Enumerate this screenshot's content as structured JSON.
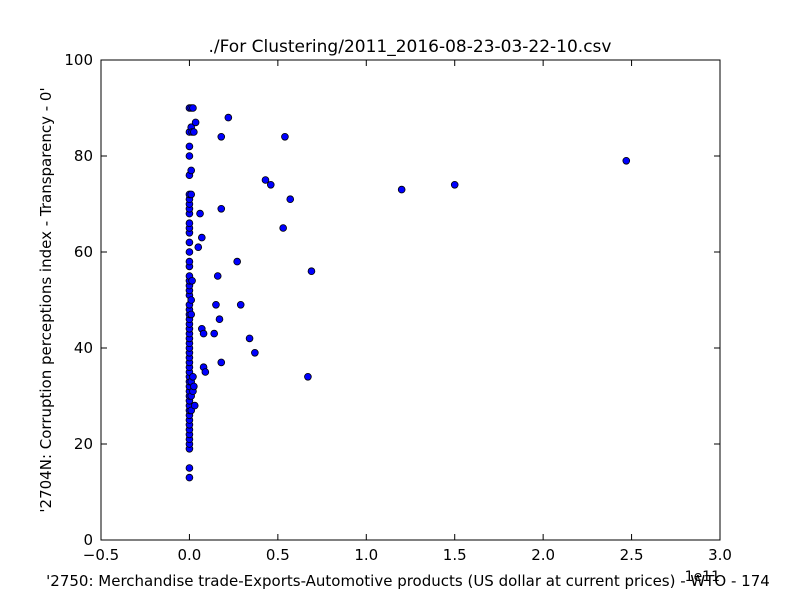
{
  "chart_data": {
    "type": "scatter",
    "title": "./For Clustering/2011_2016-08-23-03-22-10.csv",
    "xlabel": "'2750: Merchandise trade-Exports-Automotive products (US dollar at current prices) - WTO - 174",
    "ylabel": "'2704N: Corruption perceptions index - Transparency - 0'",
    "x_offset_text": "1e11",
    "xlim": [
      -0.5,
      3.0
    ],
    "ylim": [
      0,
      100
    ],
    "xticks": [
      -0.5,
      0.0,
      0.5,
      1.0,
      1.5,
      2.0,
      2.5,
      3.0
    ],
    "xtick_labels": [
      "−0.5",
      "0.0",
      "0.5",
      "1.0",
      "1.5",
      "2.0",
      "2.5",
      "3.0"
    ],
    "yticks": [
      0,
      20,
      40,
      60,
      80,
      100
    ],
    "ytick_labels": [
      "0",
      "20",
      "40",
      "60",
      "80",
      "100"
    ],
    "grid": false,
    "marker_color": "#0000ff",
    "marker_edge": "#000000",
    "points": [
      {
        "x": 0.0,
        "y": 13
      },
      {
        "x": 0.0,
        "y": 15
      },
      {
        "x": 0.0,
        "y": 19
      },
      {
        "x": 0.0,
        "y": 20
      },
      {
        "x": 0.0,
        "y": 21
      },
      {
        "x": 0.0,
        "y": 22
      },
      {
        "x": 0.0,
        "y": 23
      },
      {
        "x": 0.0,
        "y": 24
      },
      {
        "x": 0.0,
        "y": 25
      },
      {
        "x": 0.0,
        "y": 26
      },
      {
        "x": 0.0,
        "y": 27
      },
      {
        "x": 0.0,
        "y": 28
      },
      {
        "x": 0.0,
        "y": 29
      },
      {
        "x": 0.0,
        "y": 30
      },
      {
        "x": 0.0,
        "y": 31
      },
      {
        "x": 0.0,
        "y": 32
      },
      {
        "x": 0.0,
        "y": 33
      },
      {
        "x": 0.0,
        "y": 34
      },
      {
        "x": 0.0,
        "y": 35
      },
      {
        "x": 0.0,
        "y": 36
      },
      {
        "x": 0.0,
        "y": 37
      },
      {
        "x": 0.0,
        "y": 38
      },
      {
        "x": 0.0,
        "y": 39
      },
      {
        "x": 0.0,
        "y": 40
      },
      {
        "x": 0.0,
        "y": 41
      },
      {
        "x": 0.0,
        "y": 42
      },
      {
        "x": 0.0,
        "y": 43
      },
      {
        "x": 0.0,
        "y": 44
      },
      {
        "x": 0.0,
        "y": 45
      },
      {
        "x": 0.0,
        "y": 46
      },
      {
        "x": 0.0,
        "y": 47
      },
      {
        "x": 0.0,
        "y": 48
      },
      {
        "x": 0.0,
        "y": 49
      },
      {
        "x": 0.0,
        "y": 51
      },
      {
        "x": 0.0,
        "y": 52
      },
      {
        "x": 0.0,
        "y": 53
      },
      {
        "x": 0.0,
        "y": 54
      },
      {
        "x": 0.0,
        "y": 55
      },
      {
        "x": 0.0,
        "y": 57
      },
      {
        "x": 0.0,
        "y": 58
      },
      {
        "x": 0.0,
        "y": 60
      },
      {
        "x": 0.0,
        "y": 62
      },
      {
        "x": 0.0,
        "y": 64
      },
      {
        "x": 0.0,
        "y": 65
      },
      {
        "x": 0.0,
        "y": 66
      },
      {
        "x": 0.0,
        "y": 68
      },
      {
        "x": 0.0,
        "y": 69
      },
      {
        "x": 0.0,
        "y": 70
      },
      {
        "x": 0.0,
        "y": 71
      },
      {
        "x": 0.0,
        "y": 72
      },
      {
        "x": 0.0,
        "y": 76
      },
      {
        "x": 0.0,
        "y": 80
      },
      {
        "x": 0.0,
        "y": 82
      },
      {
        "x": 0.0,
        "y": 85
      },
      {
        "x": 0.0,
        "y": 90
      },
      {
        "x": 0.01,
        "y": 27
      },
      {
        "x": 0.01,
        "y": 30
      },
      {
        "x": 0.01,
        "y": 33
      },
      {
        "x": 0.01,
        "y": 47
      },
      {
        "x": 0.01,
        "y": 50
      },
      {
        "x": 0.01,
        "y": 72
      },
      {
        "x": 0.01,
        "y": 77
      },
      {
        "x": 0.01,
        "y": 86
      },
      {
        "x": 0.01,
        "y": 90
      },
      {
        "x": 0.015,
        "y": 54
      },
      {
        "x": 0.015,
        "y": 85
      },
      {
        "x": 0.02,
        "y": 31
      },
      {
        "x": 0.02,
        "y": 34
      },
      {
        "x": 0.02,
        "y": 90
      },
      {
        "x": 0.025,
        "y": 32
      },
      {
        "x": 0.025,
        "y": 85
      },
      {
        "x": 0.03,
        "y": 28
      },
      {
        "x": 0.035,
        "y": 87
      },
      {
        "x": 0.05,
        "y": 61
      },
      {
        "x": 0.06,
        "y": 68
      },
      {
        "x": 0.07,
        "y": 44
      },
      {
        "x": 0.07,
        "y": 63
      },
      {
        "x": 0.08,
        "y": 36
      },
      {
        "x": 0.08,
        "y": 43
      },
      {
        "x": 0.09,
        "y": 35
      },
      {
        "x": 0.14,
        "y": 43
      },
      {
        "x": 0.15,
        "y": 49
      },
      {
        "x": 0.16,
        "y": 55
      },
      {
        "x": 0.17,
        "y": 46
      },
      {
        "x": 0.18,
        "y": 37
      },
      {
        "x": 0.18,
        "y": 69
      },
      {
        "x": 0.18,
        "y": 84
      },
      {
        "x": 0.22,
        "y": 88
      },
      {
        "x": 0.27,
        "y": 58
      },
      {
        "x": 0.29,
        "y": 49
      },
      {
        "x": 0.34,
        "y": 42
      },
      {
        "x": 0.37,
        "y": 39
      },
      {
        "x": 0.43,
        "y": 75
      },
      {
        "x": 0.46,
        "y": 74
      },
      {
        "x": 0.53,
        "y": 65
      },
      {
        "x": 0.54,
        "y": 84
      },
      {
        "x": 0.57,
        "y": 71
      },
      {
        "x": 0.67,
        "y": 34
      },
      {
        "x": 0.69,
        "y": 56
      },
      {
        "x": 1.2,
        "y": 73
      },
      {
        "x": 1.5,
        "y": 74
      },
      {
        "x": 2.47,
        "y": 79
      }
    ]
  }
}
